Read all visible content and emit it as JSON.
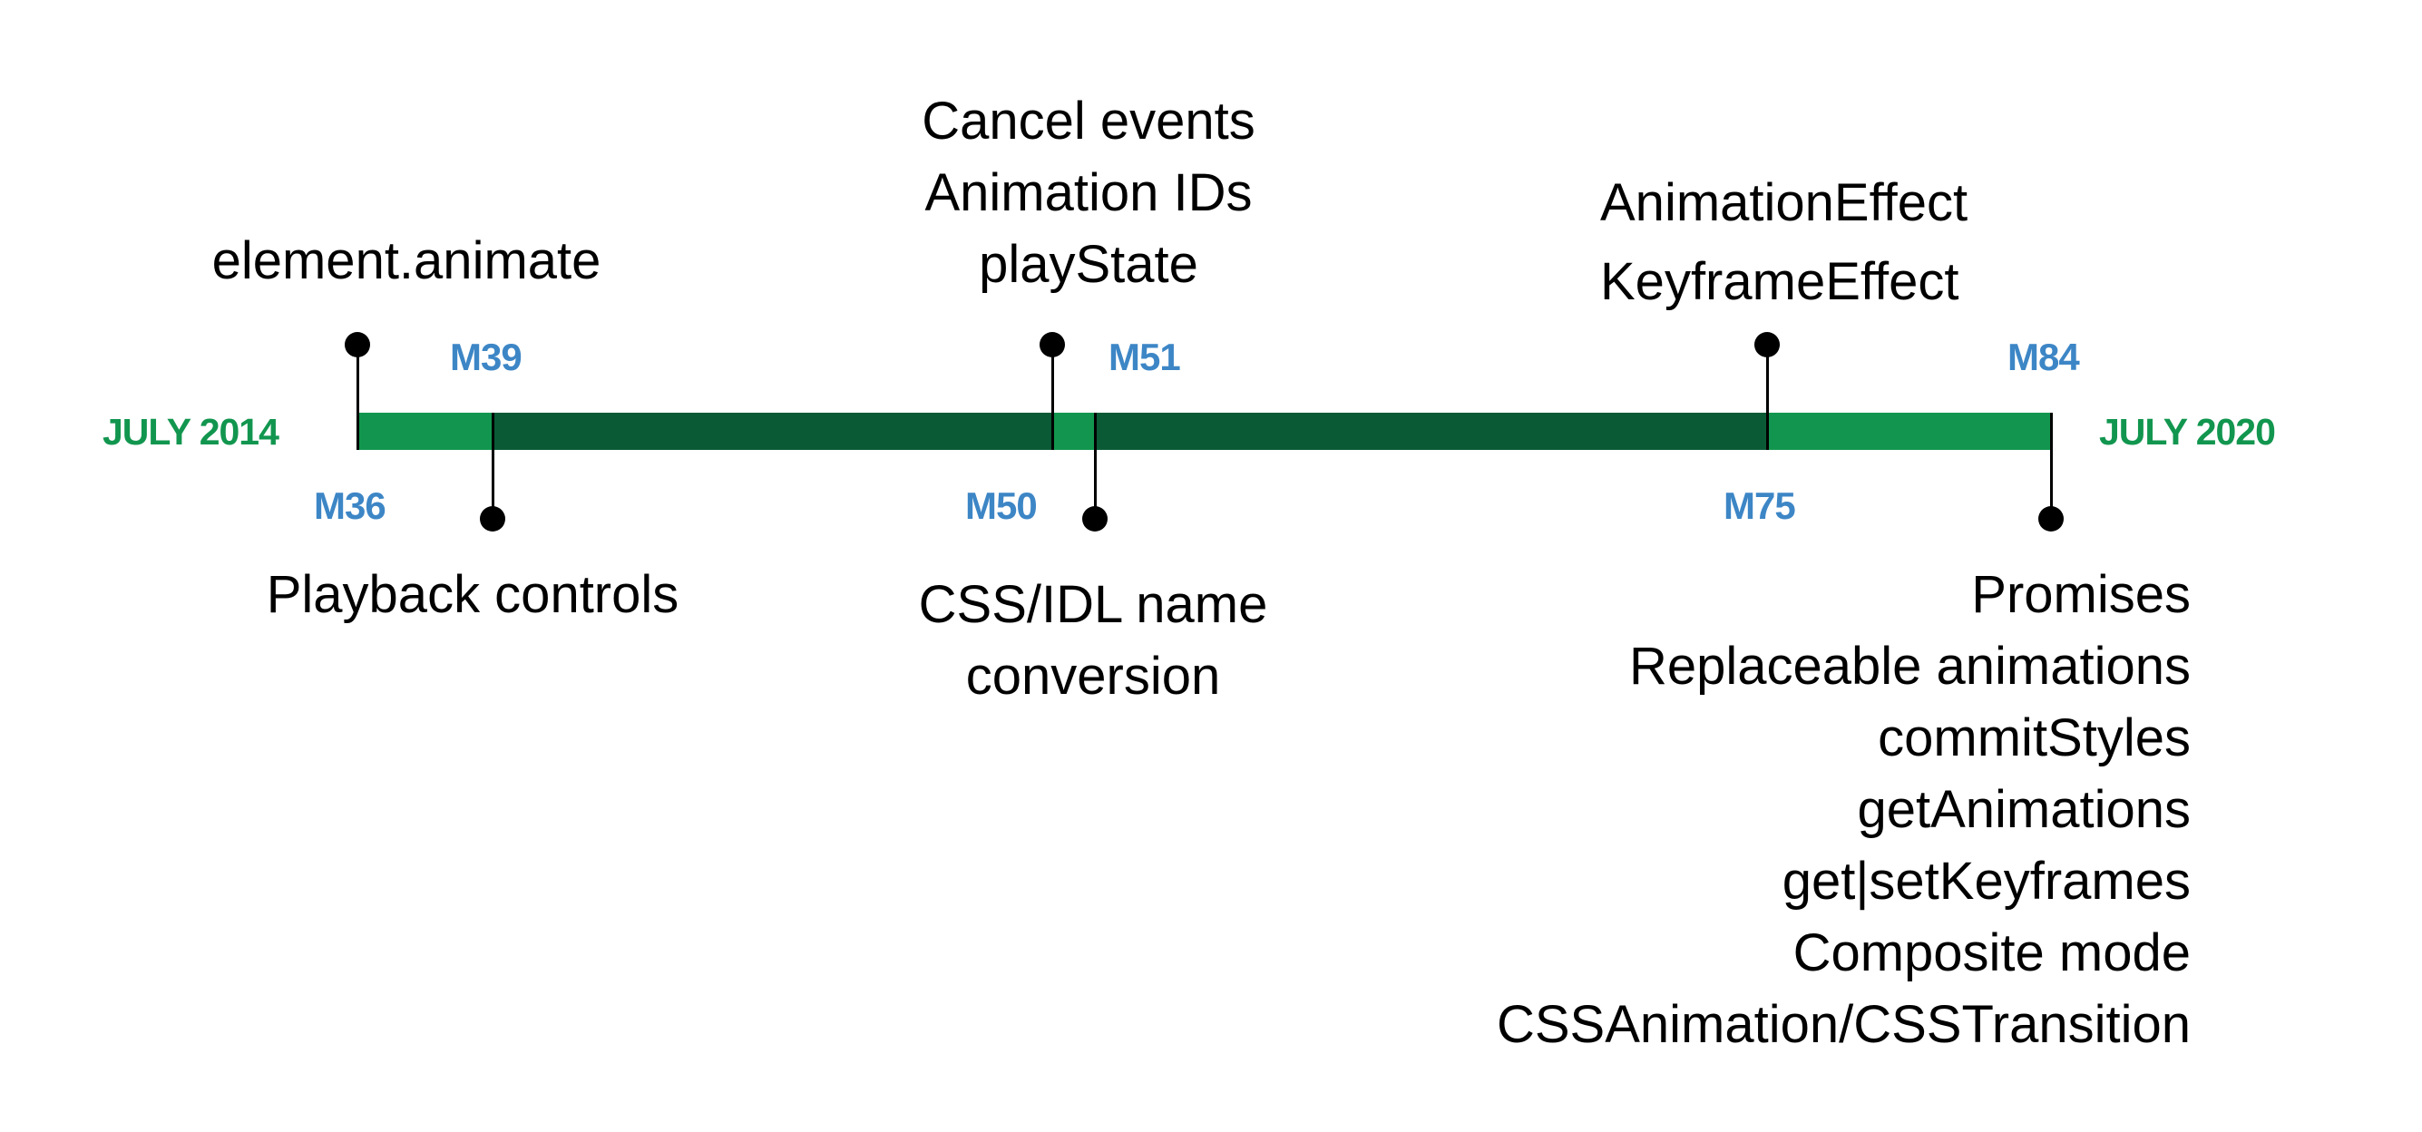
{
  "colors": {
    "light_green": "#12964f",
    "dark_green": "#0a5a36",
    "milestone_blue": "#3d86c6",
    "date_green": "#12964f"
  },
  "timeline": {
    "start_label": "JULY 2014",
    "end_label": "JULY 2020",
    "milestones": {
      "m36": "M36",
      "m39": "M39",
      "m50": "M50",
      "m51": "M51",
      "m75": "M75",
      "m84": "M84"
    }
  },
  "features": {
    "m36": [
      "element.animate"
    ],
    "m39": [
      "Playback controls"
    ],
    "m50": [
      "Cancel events",
      "Animation IDs",
      "playState"
    ],
    "m51": [
      "CSS/IDL name",
      "conversion"
    ],
    "m75": [
      "AnimationEffect",
      "KeyframeEffect"
    ],
    "m84": [
      "Promises",
      "Replaceable animations",
      "commitStyles",
      "getAnimations",
      "get|setKeyframes",
      "Composite mode",
      "CSSAnimation/CSSTransition"
    ]
  }
}
